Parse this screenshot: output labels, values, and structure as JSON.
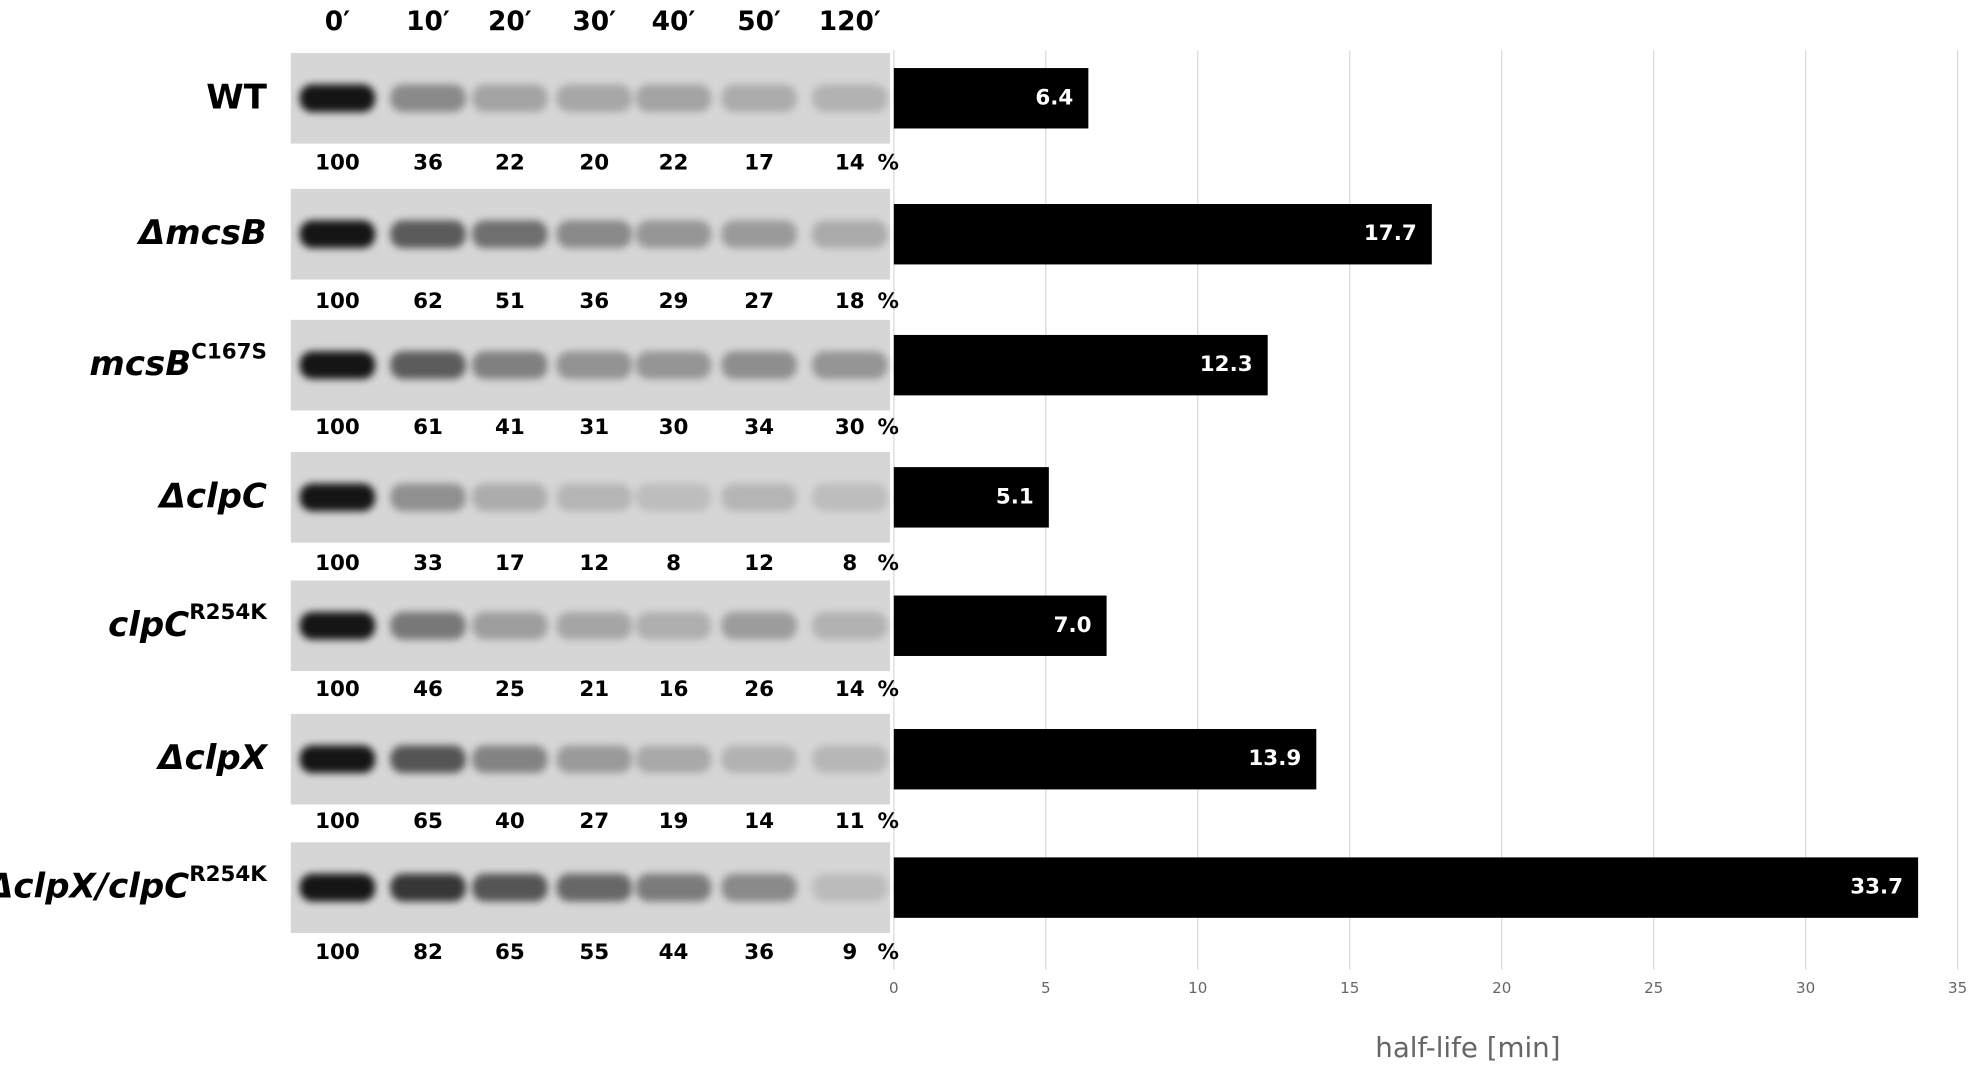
{
  "blots": {
    "times": [
      "0′",
      "10′",
      "20′",
      "30′",
      "40′",
      "50′",
      "120′"
    ],
    "unit": "%",
    "rows": [
      {
        "label": "WT",
        "italic": false,
        "quantities": [
          100,
          36,
          22,
          20,
          22,
          17,
          14
        ]
      },
      {
        "label": "ΔmcsB",
        "italic": true,
        "quantities": [
          100,
          62,
          51,
          36,
          29,
          27,
          18
        ]
      },
      {
        "label": "mcsB",
        "superscript": "C167S",
        "italic": true,
        "quantities": [
          100,
          61,
          41,
          31,
          30,
          34,
          30
        ]
      },
      {
        "label": "ΔclpC",
        "italic": true,
        "quantities": [
          100,
          33,
          17,
          12,
          8,
          12,
          8
        ]
      },
      {
        "label": "clpC",
        "superscript": "R254K",
        "italic": true,
        "quantities": [
          100,
          46,
          25,
          21,
          16,
          26,
          14
        ]
      },
      {
        "label": "ΔclpX",
        "italic": true,
        "quantities": [
          100,
          65,
          40,
          27,
          19,
          14,
          11
        ]
      },
      {
        "label": "ΔclpX/clpC",
        "superscript": "R254K",
        "italic": true,
        "quantities": [
          100,
          82,
          65,
          55,
          44,
          36,
          9
        ]
      }
    ]
  },
  "chart_data": {
    "type": "bar",
    "orientation": "horizontal",
    "values": [
      6.4,
      17.7,
      12.3,
      5.1,
      7.0,
      13.9,
      33.7
    ],
    "value_labels": [
      "6.4",
      "17.7",
      "12.3",
      "5.1",
      "7.0",
      "13.9",
      "33.7"
    ],
    "color": "#000000",
    "xlim": [
      0,
      35
    ],
    "xticks": [
      0,
      5,
      10,
      15,
      20,
      25,
      30,
      35
    ],
    "xlabel": "half-life [min]",
    "grid": true
  }
}
